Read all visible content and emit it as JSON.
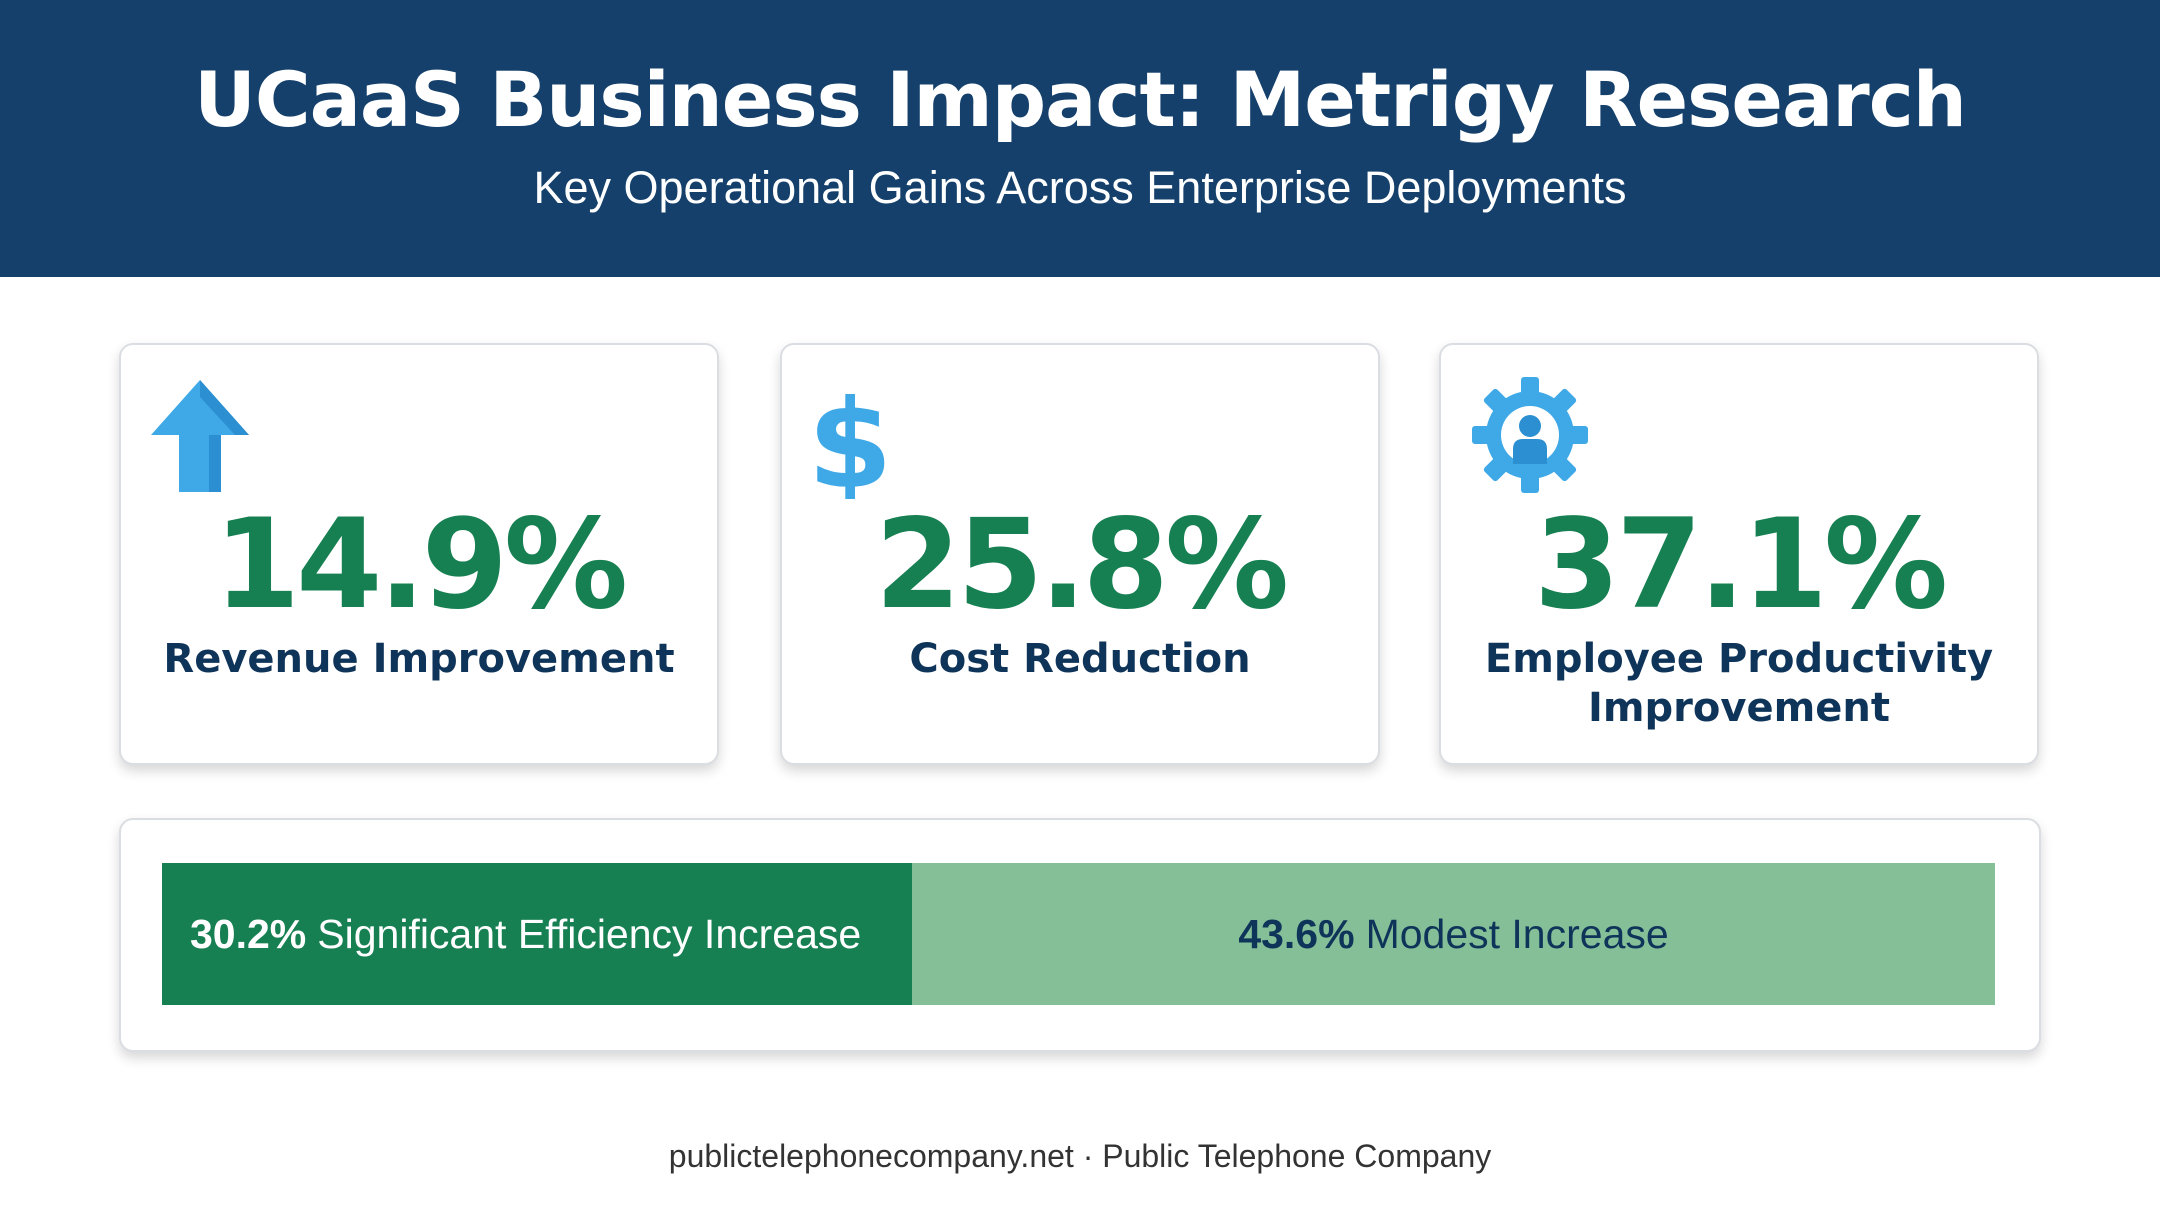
{
  "header": {
    "title": "UCaaS Business Impact: Metrigy Research",
    "subtitle": "Key Operational Gains Across Enterprise Deployments",
    "background": "#14406b"
  },
  "chart_data": [
    {
      "type": "table",
      "metrics": [
        {
          "value": 14.9,
          "display": "14.9%",
          "label": "Revenue Improvement",
          "icon": "arrow-up-icon"
        },
        {
          "value": 25.8,
          "display": "25.8%",
          "label": "Cost Reduction",
          "icon": "dollar-sign-icon"
        },
        {
          "value": 37.1,
          "display": "37.1%",
          "label": "Employee Productivity Improvement",
          "icon": "gear-person-icon"
        }
      ],
      "value_color": "#178052",
      "icon_color": "#3fa9e8"
    },
    {
      "type": "bar",
      "orientation": "horizontal-stacked",
      "categories": [
        "Significant Efficiency Increase",
        "Modest Increase"
      ],
      "values": [
        30.2,
        43.6
      ],
      "value_labels": [
        "30.2%",
        "43.6%"
      ],
      "colors": [
        "#178052",
        "#85bf98"
      ]
    }
  ],
  "footer": {
    "text": "publictelephonecompany.net · Public Telephone Company"
  }
}
